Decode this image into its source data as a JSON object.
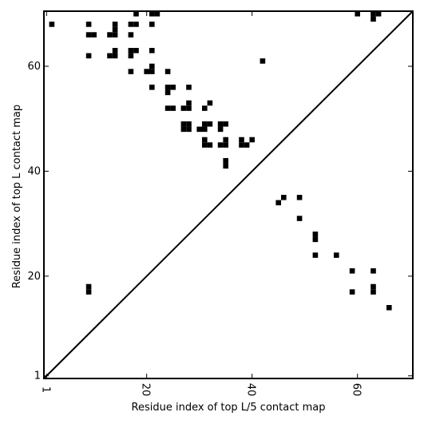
{
  "chart_data": {
    "type": "heatmap",
    "title": "",
    "xlabel": "Residue index of top L/5 contact map",
    "ylabel": "Residue index of top L contact map",
    "xlim": [
      0.5,
      70.5
    ],
    "ylim": [
      0.5,
      70.5
    ],
    "x_ticks": [
      1,
      20,
      40,
      60
    ],
    "y_ticks": [
      1,
      20,
      40,
      60
    ],
    "x_tick_labels": [
      "1",
      "20",
      "40",
      "60"
    ],
    "y_tick_labels": [
      "1",
      "20",
      "40",
      "60"
    ],
    "diagonal": {
      "from": [
        0.5,
        0.5
      ],
      "to": [
        70.5,
        70.5
      ]
    },
    "lower_triangle_contacts": [
      [
        45,
        34
      ],
      [
        46,
        35
      ],
      [
        49,
        35
      ],
      [
        49,
        31
      ],
      [
        52,
        28
      ],
      [
        52,
        27
      ],
      [
        52,
        24
      ],
      [
        56,
        24
      ],
      [
        59,
        21
      ],
      [
        63,
        21
      ],
      [
        59,
        17
      ],
      [
        63,
        18
      ],
      [
        63,
        17
      ],
      [
        66,
        14
      ]
    ],
    "upper_triangle_contacts": [
      [
        2,
        68
      ],
      [
        9,
        68
      ],
      [
        14,
        68
      ],
      [
        17,
        68
      ],
      [
        18,
        68
      ],
      [
        21,
        68
      ],
      [
        9,
        66
      ],
      [
        10,
        66
      ],
      [
        13,
        66
      ],
      [
        14,
        66
      ],
      [
        14,
        67
      ],
      [
        17,
        66
      ],
      [
        9,
        62
      ],
      [
        13,
        62
      ],
      [
        14,
        62
      ],
      [
        14,
        63
      ],
      [
        17,
        62
      ],
      [
        17,
        63
      ],
      [
        18,
        63
      ],
      [
        21,
        63
      ],
      [
        18,
        70
      ],
      [
        21,
        70
      ],
      [
        22,
        70
      ],
      [
        60,
        70
      ],
      [
        63,
        70
      ],
      [
        64,
        70
      ],
      [
        63,
        69
      ],
      [
        42,
        61
      ],
      [
        17,
        59
      ],
      [
        20,
        59
      ],
      [
        21,
        59
      ],
      [
        21,
        60
      ],
      [
        24,
        59
      ],
      [
        21,
        56
      ],
      [
        24,
        55
      ],
      [
        24,
        56
      ],
      [
        25,
        56
      ],
      [
        28,
        56
      ],
      [
        24,
        52
      ],
      [
        25,
        52
      ],
      [
        27,
        52
      ],
      [
        28,
        52
      ],
      [
        28,
        53
      ],
      [
        31,
        52
      ],
      [
        32,
        53
      ],
      [
        27,
        49
      ],
      [
        28,
        49
      ],
      [
        27,
        48
      ],
      [
        28,
        48
      ],
      [
        30,
        48
      ],
      [
        31,
        48
      ],
      [
        31,
        49
      ],
      [
        32,
        49
      ],
      [
        34,
        49
      ],
      [
        35,
        49
      ],
      [
        34,
        48
      ],
      [
        31,
        46
      ],
      [
        31,
        45
      ],
      [
        32,
        45
      ],
      [
        34,
        45
      ],
      [
        35,
        45
      ],
      [
        35,
        46
      ],
      [
        38,
        46
      ],
      [
        38,
        45
      ],
      [
        39,
        45
      ],
      [
        40,
        46
      ],
      [
        35,
        42
      ],
      [
        35,
        41
      ],
      [
        9,
        18
      ],
      [
        9,
        17
      ]
    ]
  }
}
